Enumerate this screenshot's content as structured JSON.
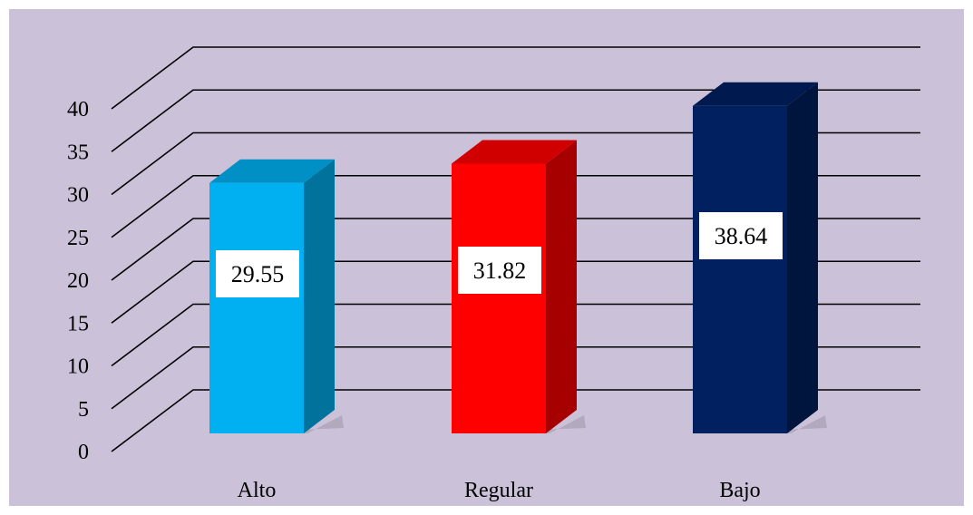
{
  "colors": {
    "plot_background": "#CBC1D9",
    "grid": "#000000"
  },
  "chart_data": {
    "type": "bar",
    "categories": [
      "Alto",
      "Regular",
      "Bajo"
    ],
    "values": [
      29.55,
      31.82,
      38.64
    ],
    "data_labels": [
      "29.55",
      "31.82",
      "38.64"
    ],
    "bar_colors": [
      "#00B0F0",
      "#FF0000",
      "#002060"
    ],
    "ylim": [
      0,
      40
    ],
    "yticks": [
      0,
      5,
      10,
      15,
      20,
      25,
      30,
      35,
      40
    ],
    "ytick_labels": [
      "0",
      "5",
      "10",
      "15",
      "20",
      "25",
      "30",
      "35",
      "40"
    ],
    "grid": true,
    "three_d": true,
    "legend": "none"
  }
}
